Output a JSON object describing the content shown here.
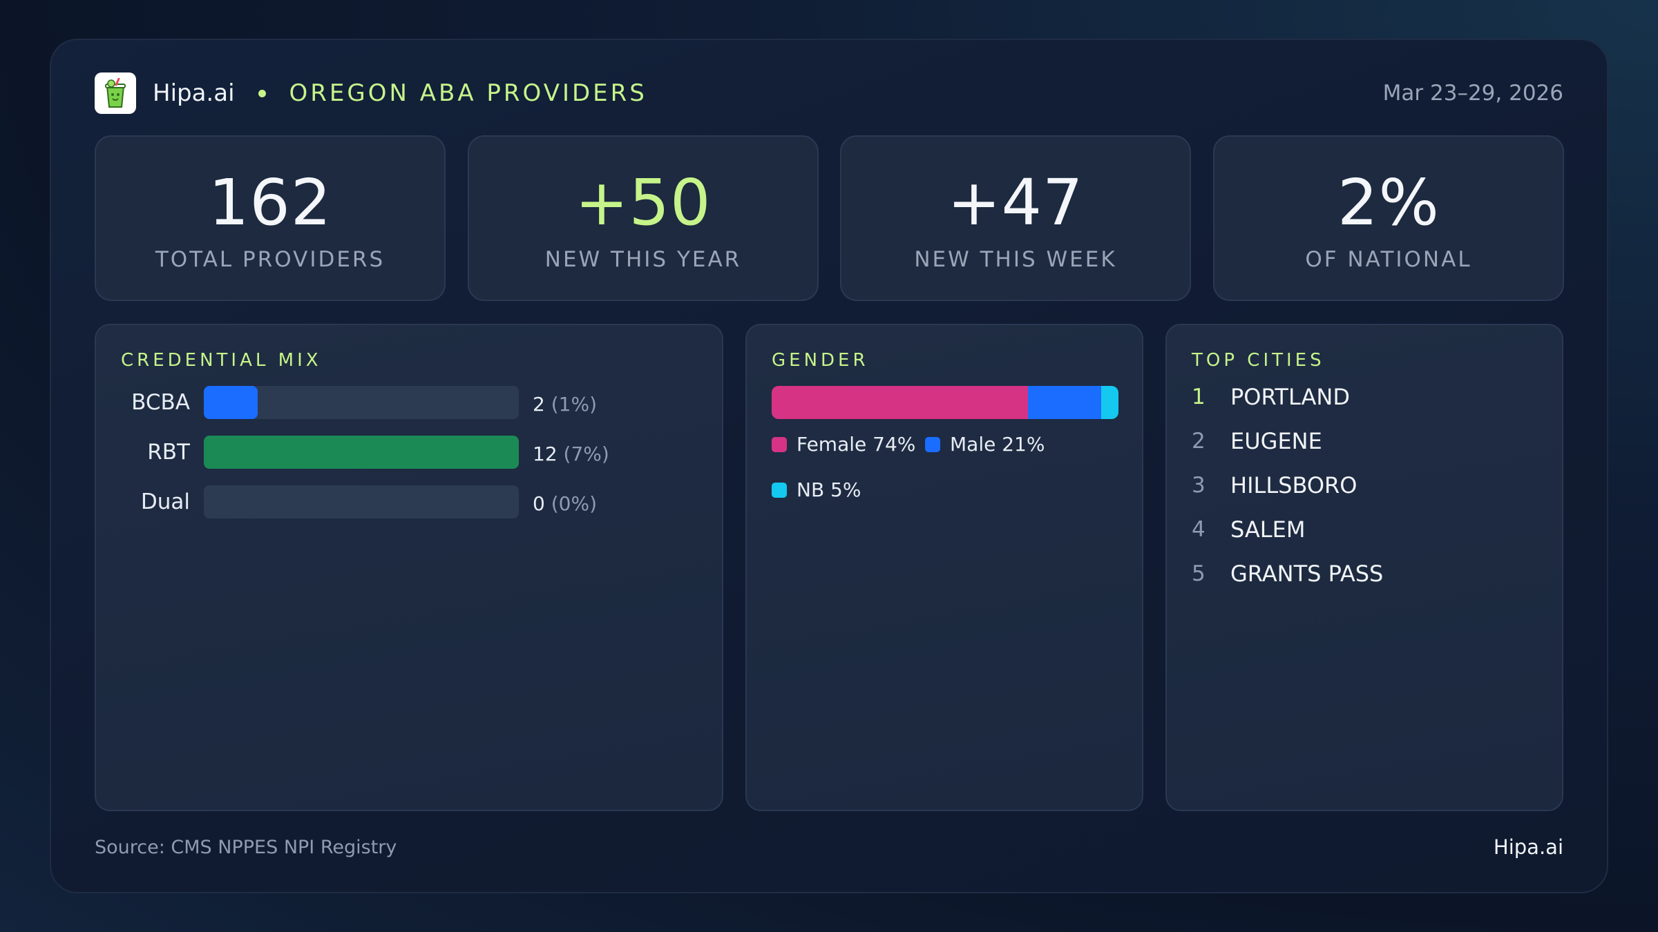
{
  "header": {
    "brand": "Hipa.ai",
    "logo_icon": "smoothie-cup-icon",
    "subject": "OREGON ABA PROVIDERS",
    "date_range": "Mar 23–29, 2026"
  },
  "kpis": [
    {
      "value": "162",
      "label": "TOTAL PROVIDERS"
    },
    {
      "value": "+50",
      "label": "NEW THIS YEAR",
      "accent": true
    },
    {
      "value": "+47",
      "label": "NEW THIS WEEK"
    },
    {
      "value": "2%",
      "label": "OF NATIONAL"
    }
  ],
  "credential_mix": {
    "title": "CREDENTIAL MIX",
    "items": [
      {
        "name": "BCBA",
        "count": "2",
        "pct": "(1%)",
        "fill": 0.17,
        "color": "#1a6dff"
      },
      {
        "name": "RBT",
        "count": "12",
        "pct": "(7%)",
        "fill": 1.0,
        "color": "#1c8a55"
      },
      {
        "name": "Dual",
        "count": "0",
        "pct": "(0%)",
        "fill": 0.0,
        "color": "#1a6dff"
      }
    ]
  },
  "gender": {
    "title": "GENDER",
    "segments": [
      {
        "label": "Female 74%",
        "fraction": 0.74,
        "color": "#d63384"
      },
      {
        "label": "Male 21%",
        "fraction": 0.21,
        "color": "#1a6dff"
      },
      {
        "label": "NB 5%",
        "fraction": 0.05,
        "color": "#14c8f0"
      }
    ]
  },
  "top_cities": {
    "title": "TOP CITIES",
    "items": [
      {
        "rank": "1",
        "name": "PORTLAND"
      },
      {
        "rank": "2",
        "name": "EUGENE"
      },
      {
        "rank": "3",
        "name": "HILLSBORO"
      },
      {
        "rank": "4",
        "name": "SALEM"
      },
      {
        "rank": "5",
        "name": "GRANTS PASS"
      }
    ]
  },
  "footer": {
    "source": "Source: CMS NPPES NPI Registry",
    "brand": "Hipa.ai"
  }
}
